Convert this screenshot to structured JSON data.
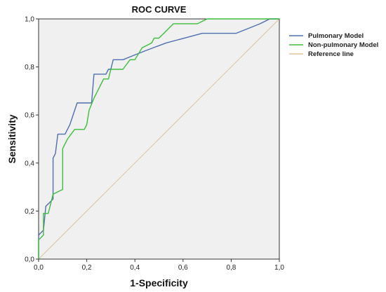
{
  "chart_data": {
    "type": "line",
    "title": "ROC CURVE",
    "xlabel": "1-Specificity",
    "ylabel": "Sensitivity",
    "xlim": [
      0,
      1
    ],
    "ylim": [
      0,
      1
    ],
    "x_ticks": [
      "0,0",
      "0,2",
      "0,4",
      "0,6",
      "0,8",
      "1,0"
    ],
    "y_ticks": [
      "0,0",
      "0,2",
      "0,4",
      "0,6",
      "0,8",
      "1,0"
    ],
    "grid": false,
    "legend_position": "right",
    "background_color": "#f0f0f0",
    "series": [
      {
        "name": "Pulmonary Model",
        "color": "#4f6fb0",
        "points": [
          [
            0,
            0
          ],
          [
            0,
            0.1
          ],
          [
            0.02,
            0.12
          ],
          [
            0.03,
            0.22
          ],
          [
            0.05,
            0.24
          ],
          [
            0.06,
            0.25
          ],
          [
            0.06,
            0.42
          ],
          [
            0.07,
            0.44
          ],
          [
            0.08,
            0.52
          ],
          [
            0.11,
            0.52
          ],
          [
            0.13,
            0.56
          ],
          [
            0.16,
            0.65
          ],
          [
            0.22,
            0.65
          ],
          [
            0.23,
            0.77
          ],
          [
            0.28,
            0.77
          ],
          [
            0.29,
            0.79
          ],
          [
            0.3,
            0.79
          ],
          [
            0.31,
            0.83
          ],
          [
            0.35,
            0.83
          ],
          [
            0.4,
            0.85
          ],
          [
            0.45,
            0.87
          ],
          [
            0.53,
            0.9
          ],
          [
            0.68,
            0.94
          ],
          [
            0.82,
            0.94
          ],
          [
            0.92,
            0.98
          ],
          [
            0.96,
            1.0
          ],
          [
            1.0,
            1.0
          ]
        ]
      },
      {
        "name": "Non-pulmonary Model",
        "color": "#3dbd3d",
        "points": [
          [
            0,
            0
          ],
          [
            0,
            0.08
          ],
          [
            0.02,
            0.1
          ],
          [
            0.02,
            0.19
          ],
          [
            0.04,
            0.19
          ],
          [
            0.05,
            0.23
          ],
          [
            0.06,
            0.27
          ],
          [
            0.1,
            0.29
          ],
          [
            0.1,
            0.46
          ],
          [
            0.12,
            0.5
          ],
          [
            0.15,
            0.54
          ],
          [
            0.19,
            0.54
          ],
          [
            0.2,
            0.56
          ],
          [
            0.21,
            0.62
          ],
          [
            0.23,
            0.67
          ],
          [
            0.25,
            0.71
          ],
          [
            0.27,
            0.75
          ],
          [
            0.29,
            0.75
          ],
          [
            0.3,
            0.79
          ],
          [
            0.35,
            0.79
          ],
          [
            0.38,
            0.83
          ],
          [
            0.4,
            0.83
          ],
          [
            0.43,
            0.88
          ],
          [
            0.47,
            0.9
          ],
          [
            0.48,
            0.92
          ],
          [
            0.5,
            0.92
          ],
          [
            0.52,
            0.94
          ],
          [
            0.54,
            0.96
          ],
          [
            0.56,
            0.98
          ],
          [
            0.66,
            0.98
          ],
          [
            0.7,
            1.0
          ],
          [
            1.0,
            1.0
          ]
        ]
      },
      {
        "name": "Reference line",
        "color": "#dcc49a",
        "points": [
          [
            0,
            0
          ],
          [
            1,
            1
          ]
        ]
      }
    ]
  }
}
